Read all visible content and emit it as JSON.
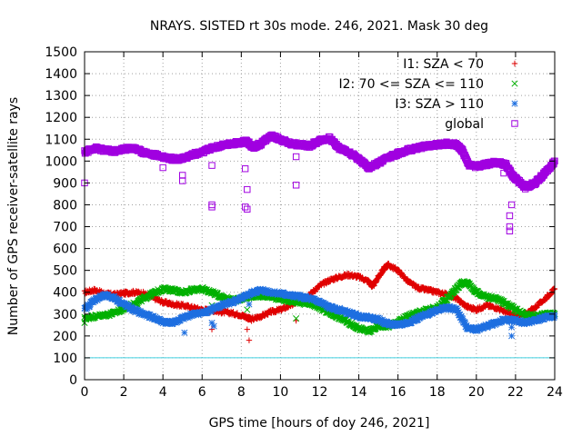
{
  "chart_data": {
    "type": "scatter",
    "title": "NRAYS. SISTED rt 30s mode. 246, 2021. Mask 30 deg",
    "xlabel": "GPS time [hours of doy 246, 2021]",
    "ylabel": "Number of GPS receiver-satellite rays",
    "xlim": [
      0,
      24
    ],
    "ylim": [
      0,
      1500
    ],
    "xticks": [
      0,
      2,
      4,
      6,
      8,
      10,
      12,
      14,
      16,
      18,
      20,
      22,
      24
    ],
    "yticks": [
      0,
      100,
      200,
      300,
      400,
      500,
      600,
      700,
      800,
      900,
      1000,
      1100,
      1200,
      1300,
      1400,
      1500
    ],
    "grid": true,
    "legend_position": "top-right",
    "reference_line": {
      "y": 100,
      "color": "#40d0e0"
    },
    "series": [
      {
        "name": "I1: SZA < 70",
        "color": "#e00000",
        "marker": "plus",
        "points": [
          [
            0,
            400
          ],
          [
            0.5,
            410
          ],
          [
            1,
            395
          ],
          [
            1.5,
            390
          ],
          [
            2,
            395
          ],
          [
            2.5,
            400
          ],
          [
            3,
            395
          ],
          [
            3.5,
            375
          ],
          [
            4,
            355
          ],
          [
            4.5,
            345
          ],
          [
            5,
            340
          ],
          [
            5.5,
            330
          ],
          [
            6,
            320
          ],
          [
            6.5,
            318
          ],
          [
            7,
            310
          ],
          [
            7.5,
            305
          ],
          [
            8,
            295
          ],
          [
            8.3,
            285
          ],
          [
            8.5,
            275
          ],
          [
            9,
            290
          ],
          [
            9.5,
            310
          ],
          [
            10,
            320
          ],
          [
            10.5,
            340
          ],
          [
            11,
            360
          ],
          [
            11.5,
            390
          ],
          [
            12,
            430
          ],
          [
            12.5,
            455
          ],
          [
            13,
            470
          ],
          [
            13.5,
            480
          ],
          [
            14,
            470
          ],
          [
            14.5,
            450
          ],
          [
            14.7,
            425
          ],
          [
            15,
            470
          ],
          [
            15.3,
            510
          ],
          [
            15.5,
            525
          ],
          [
            16,
            500
          ],
          [
            16.5,
            450
          ],
          [
            17,
            420
          ],
          [
            17.5,
            410
          ],
          [
            18,
            400
          ],
          [
            18.5,
            390
          ],
          [
            19,
            370
          ],
          [
            19.5,
            335
          ],
          [
            20,
            320
          ],
          [
            20.5,
            340
          ],
          [
            21,
            330
          ],
          [
            21.5,
            310
          ],
          [
            22,
            290
          ],
          [
            22.5,
            300
          ],
          [
            23,
            330
          ],
          [
            23.5,
            370
          ],
          [
            24,
            415
          ]
        ],
        "outliers": [
          [
            6.5,
            230
          ],
          [
            8.3,
            230
          ],
          [
            8.4,
            180
          ],
          [
            10.8,
            270
          ],
          [
            21.3,
            270
          ]
        ]
      },
      {
        "name": "I2: 70 <= SZA <= 110",
        "color": "#00b000",
        "marker": "cross",
        "points": [
          [
            0,
            280
          ],
          [
            0.5,
            290
          ],
          [
            1,
            295
          ],
          [
            1.5,
            305
          ],
          [
            2,
            325
          ],
          [
            2.5,
            345
          ],
          [
            3,
            370
          ],
          [
            3.5,
            395
          ],
          [
            4,
            415
          ],
          [
            4.5,
            410
          ],
          [
            5,
            400
          ],
          [
            5.5,
            410
          ],
          [
            6,
            415
          ],
          [
            6.5,
            400
          ],
          [
            7,
            380
          ],
          [
            7.5,
            365
          ],
          [
            8,
            370
          ],
          [
            8.5,
            380
          ],
          [
            9,
            385
          ],
          [
            9.5,
            380
          ],
          [
            10,
            370
          ],
          [
            10.5,
            360
          ],
          [
            11,
            355
          ],
          [
            11.5,
            345
          ],
          [
            12,
            330
          ],
          [
            12.5,
            305
          ],
          [
            13,
            285
          ],
          [
            13.5,
            260
          ],
          [
            14,
            235
          ],
          [
            14.5,
            220
          ],
          [
            15,
            245
          ],
          [
            15.5,
            245
          ],
          [
            16,
            265
          ],
          [
            16.5,
            290
          ],
          [
            17,
            305
          ],
          [
            17.5,
            320
          ],
          [
            18,
            330
          ],
          [
            18.5,
            370
          ],
          [
            19,
            420
          ],
          [
            19.3,
            445
          ],
          [
            19.6,
            440
          ],
          [
            20,
            400
          ],
          [
            20.5,
            380
          ],
          [
            21,
            370
          ],
          [
            21.5,
            350
          ],
          [
            22,
            320
          ],
          [
            22.5,
            300
          ],
          [
            23,
            290
          ],
          [
            23.5,
            300
          ],
          [
            24,
            300
          ]
        ],
        "outliers": [
          [
            0,
            260
          ],
          [
            6.5,
            340
          ],
          [
            8.3,
            320
          ],
          [
            10.8,
            280
          ]
        ]
      },
      {
        "name": "I3: SZA > 110",
        "color": "#1e6fe0",
        "marker": "star",
        "points": [
          [
            0,
            320
          ],
          [
            0.5,
            365
          ],
          [
            1,
            385
          ],
          [
            1.5,
            375
          ],
          [
            2,
            345
          ],
          [
            2.5,
            320
          ],
          [
            3,
            300
          ],
          [
            3.5,
            285
          ],
          [
            4,
            265
          ],
          [
            4.5,
            260
          ],
          [
            5,
            280
          ],
          [
            5.5,
            300
          ],
          [
            6,
            305
          ],
          [
            6.5,
            320
          ],
          [
            7,
            340
          ],
          [
            7.5,
            355
          ],
          [
            8,
            370
          ],
          [
            8.5,
            395
          ],
          [
            9,
            410
          ],
          [
            9.5,
            400
          ],
          [
            10,
            395
          ],
          [
            10.5,
            385
          ],
          [
            11,
            380
          ],
          [
            11.5,
            370
          ],
          [
            12,
            355
          ],
          [
            12.5,
            330
          ],
          [
            13,
            320
          ],
          [
            13.5,
            305
          ],
          [
            14,
            290
          ],
          [
            14.5,
            285
          ],
          [
            15,
            275
          ],
          [
            15.5,
            255
          ],
          [
            16,
            250
          ],
          [
            16.5,
            260
          ],
          [
            17,
            280
          ],
          [
            17.5,
            300
          ],
          [
            18,
            320
          ],
          [
            18.5,
            330
          ],
          [
            19,
            320
          ],
          [
            19.5,
            240
          ],
          [
            20,
            230
          ],
          [
            20.5,
            245
          ],
          [
            21,
            260
          ],
          [
            21.5,
            275
          ],
          [
            22,
            270
          ],
          [
            22.5,
            260
          ],
          [
            23,
            270
          ],
          [
            23.5,
            285
          ],
          [
            24,
            290
          ]
        ],
        "outliers": [
          [
            5.1,
            215
          ],
          [
            6.5,
            260
          ],
          [
            6.6,
            245
          ],
          [
            8.4,
            345
          ],
          [
            21.8,
            200
          ],
          [
            21.8,
            240
          ]
        ]
      },
      {
        "name": "global",
        "color": "#a000e0",
        "marker": "square",
        "points": [
          [
            0,
            1040
          ],
          [
            0.5,
            1060
          ],
          [
            1,
            1050
          ],
          [
            1.5,
            1045
          ],
          [
            2,
            1055
          ],
          [
            2.5,
            1060
          ],
          [
            3,
            1040
          ],
          [
            3.5,
            1030
          ],
          [
            4,
            1020
          ],
          [
            4.5,
            1010
          ],
          [
            5,
            1010
          ],
          [
            5.5,
            1030
          ],
          [
            6,
            1040
          ],
          [
            6.5,
            1060
          ],
          [
            7,
            1070
          ],
          [
            7.5,
            1080
          ],
          [
            8,
            1085
          ],
          [
            8.3,
            1090
          ],
          [
            8.6,
            1060
          ],
          [
            9,
            1080
          ],
          [
            9.5,
            1115
          ],
          [
            10,
            1100
          ],
          [
            10.5,
            1080
          ],
          [
            11,
            1075
          ],
          [
            11.5,
            1070
          ],
          [
            12,
            1095
          ],
          [
            12.5,
            1105
          ],
          [
            13,
            1060
          ],
          [
            13.5,
            1040
          ],
          [
            14,
            1010
          ],
          [
            14.5,
            970
          ],
          [
            15,
            990
          ],
          [
            15.5,
            1015
          ],
          [
            16,
            1035
          ],
          [
            16.5,
            1050
          ],
          [
            17,
            1060
          ],
          [
            17.5,
            1070
          ],
          [
            18,
            1075
          ],
          [
            18.5,
            1080
          ],
          [
            19,
            1075
          ],
          [
            19.3,
            1045
          ],
          [
            19.6,
            985
          ],
          [
            20,
            975
          ],
          [
            20.5,
            985
          ],
          [
            21,
            995
          ],
          [
            21.5,
            985
          ],
          [
            21.8,
            940
          ],
          [
            22,
            920
          ],
          [
            22.5,
            880
          ],
          [
            23,
            900
          ],
          [
            23.5,
            945
          ],
          [
            24,
            1000
          ]
        ],
        "outliers": [
          [
            0,
            900
          ],
          [
            4,
            970
          ],
          [
            5,
            910
          ],
          [
            5,
            935
          ],
          [
            6.5,
            790
          ],
          [
            6.5,
            800
          ],
          [
            6.5,
            980
          ],
          [
            8.2,
            790
          ],
          [
            8.3,
            780
          ],
          [
            8.3,
            870
          ],
          [
            8.2,
            965
          ],
          [
            10.8,
            890
          ],
          [
            10.8,
            1020
          ],
          [
            21.7,
            700
          ],
          [
            21.7,
            680
          ],
          [
            21.7,
            750
          ],
          [
            21.8,
            800
          ],
          [
            21.4,
            945
          ]
        ]
      }
    ]
  }
}
